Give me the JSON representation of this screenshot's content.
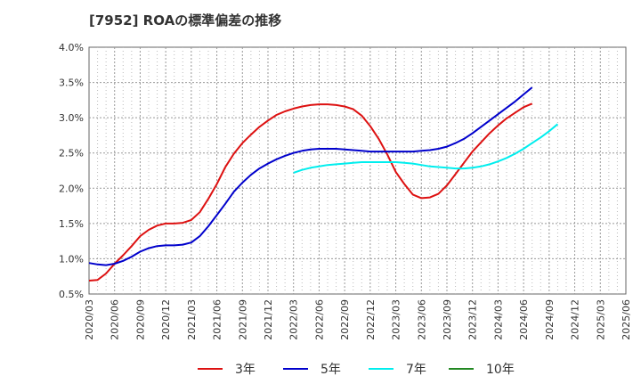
{
  "chart_data": {
    "type": "line",
    "title": "[7952]  ROAの標準偏差の推移",
    "xlabel": "",
    "ylabel": "",
    "ylim": [
      0.5,
      4.0
    ],
    "grid": true,
    "legend_position": "bottom",
    "x_ticks": [
      "2020/03",
      "2020/06",
      "2020/09",
      "2020/12",
      "2021/03",
      "2021/06",
      "2021/09",
      "2021/12",
      "2022/03",
      "2022/06",
      "2022/09",
      "2022/12",
      "2023/03",
      "2023/06",
      "2023/09",
      "2023/12",
      "2024/03",
      "2024/06",
      "2024/09",
      "2024/12",
      "2025/03",
      "2025/06"
    ],
    "y_ticks": [
      "0.5%",
      "1.0%",
      "1.5%",
      "2.0%",
      "2.5%",
      "3.0%",
      "3.5%",
      "4.0%"
    ],
    "x_start": "2020/03",
    "series": [
      {
        "name": "3年",
        "color": "#dd1111",
        "start": "2020/03",
        "values": [
          0.69,
          0.7,
          0.79,
          0.93,
          1.05,
          1.18,
          1.32,
          1.41,
          1.47,
          1.5,
          1.5,
          1.51,
          1.55,
          1.66,
          1.85,
          2.06,
          2.3,
          2.49,
          2.64,
          2.76,
          2.87,
          2.96,
          3.04,
          3.09,
          3.13,
          3.16,
          3.18,
          3.19,
          3.19,
          3.18,
          3.16,
          3.12,
          3.03,
          2.88,
          2.7,
          2.48,
          2.23,
          2.06,
          1.91,
          1.86,
          1.87,
          1.92,
          2.04,
          2.2,
          2.36,
          2.52,
          2.65,
          2.78,
          2.89,
          2.99,
          3.07,
          3.15,
          3.2
        ]
      },
      {
        "name": "5年",
        "color": "#0000cc",
        "start": "2020/03",
        "values": [
          0.94,
          0.92,
          0.91,
          0.93,
          0.97,
          1.03,
          1.1,
          1.15,
          1.18,
          1.19,
          1.19,
          1.2,
          1.23,
          1.32,
          1.46,
          1.62,
          1.78,
          1.95,
          2.08,
          2.19,
          2.28,
          2.35,
          2.41,
          2.46,
          2.5,
          2.53,
          2.55,
          2.56,
          2.56,
          2.56,
          2.55,
          2.54,
          2.53,
          2.52,
          2.52,
          2.52,
          2.52,
          2.52,
          2.52,
          2.53,
          2.54,
          2.56,
          2.59,
          2.64,
          2.7,
          2.78,
          2.87,
          2.96,
          3.05,
          3.14,
          3.23,
          3.33,
          3.43
        ]
      },
      {
        "name": "7年",
        "color": "#00eeee",
        "start": "2022/03",
        "values": [
          2.22,
          2.26,
          2.29,
          2.31,
          2.33,
          2.34,
          2.35,
          2.36,
          2.37,
          2.37,
          2.37,
          2.37,
          2.37,
          2.36,
          2.35,
          2.33,
          2.31,
          2.3,
          2.29,
          2.28,
          2.28,
          2.29,
          2.31,
          2.34,
          2.38,
          2.43,
          2.49,
          2.56,
          2.64,
          2.72,
          2.81,
          2.91
        ]
      },
      {
        "name": "10年",
        "color": "#228822",
        "start": "2025/06",
        "values": []
      }
    ]
  }
}
